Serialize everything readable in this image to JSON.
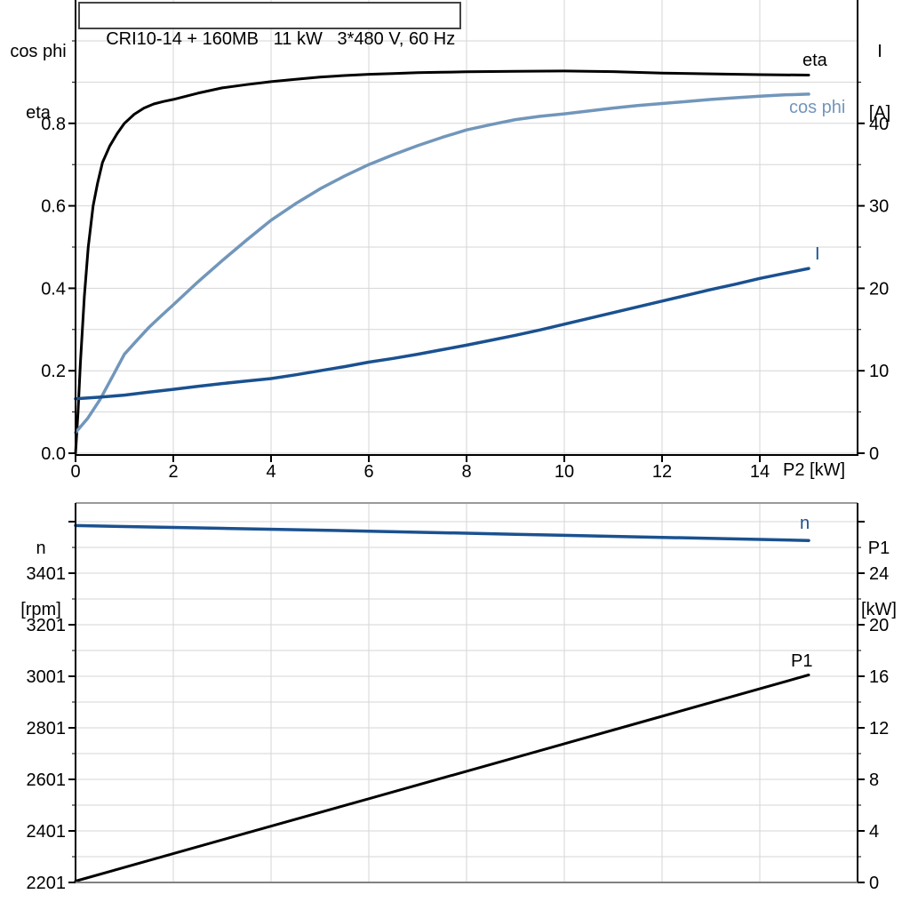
{
  "title": "CRI10-14 + 160MB   11 kW   3*480 V, 60 Hz",
  "colors": {
    "accent_dark_blue": "#1a5190",
    "accent_light_blue": "#7296bb",
    "curve_black": "#000000",
    "grid": "#d6d6d6",
    "axis": "#000000",
    "baseline_gray": "#808080",
    "panel_top_border": "#999999",
    "title_border": "#444444"
  },
  "chart_data": [
    {
      "type": "line",
      "panel": "motor-efficiency-current",
      "title": "CRI10-14 + 160MB   11 kW   3*480 V, 60 Hz",
      "grid": "on",
      "x_axis": {
        "label": "P2 [kW]",
        "min": 0,
        "max": 16,
        "major_ticks": [
          0,
          2,
          4,
          6,
          8,
          10,
          12,
          14
        ],
        "tick_labels": [
          "0",
          "2",
          "4",
          "6",
          "8",
          "10",
          "12",
          "14"
        ],
        "show_tick_labels": true
      },
      "y_left_axis": {
        "label_lines": [
          "cos phi",
          "eta"
        ],
        "min": 0.0,
        "max": 1.1,
        "major_ticks": [
          0.0,
          0.2,
          0.4,
          0.6,
          0.8
        ],
        "tick_labels": [
          "0.0",
          "0.2",
          "0.4",
          "0.6",
          "0.8"
        ],
        "unlabeled_major_ticks": [],
        "minor_ticks": [
          0.1,
          0.3,
          0.5,
          0.7,
          0.9,
          1.0
        ]
      },
      "y_right_axis": {
        "label_lines": [
          "I",
          "[A]"
        ],
        "min": 0,
        "max": 55,
        "major_ticks": [
          0,
          10,
          20,
          30,
          40
        ],
        "tick_labels": [
          "0",
          "10",
          "20",
          "30",
          "40"
        ],
        "unlabeled_major_ticks": [],
        "minor_ticks": [
          5,
          15,
          25,
          35,
          45
        ]
      },
      "series": [
        {
          "name": "eta",
          "axis": "left",
          "color": "#000000",
          "points": [
            [
              0,
              0
            ],
            [
              0.05,
              0.1
            ],
            [
              0.1,
              0.22
            ],
            [
              0.18,
              0.38
            ],
            [
              0.26,
              0.5
            ],
            [
              0.36,
              0.6
            ],
            [
              0.45,
              0.655
            ],
            [
              0.55,
              0.705
            ],
            [
              0.7,
              0.745
            ],
            [
              0.85,
              0.775
            ],
            [
              1,
              0.8
            ],
            [
              1.2,
              0.822
            ],
            [
              1.4,
              0.837
            ],
            [
              1.6,
              0.847
            ],
            [
              1.8,
              0.853
            ],
            [
              2,
              0.858
            ],
            [
              2.5,
              0.873
            ],
            [
              3,
              0.886
            ],
            [
              3.5,
              0.894
            ],
            [
              4,
              0.901
            ],
            [
              4.5,
              0.907
            ],
            [
              5,
              0.912
            ],
            [
              5.5,
              0.916
            ],
            [
              6,
              0.919
            ],
            [
              6.5,
              0.921
            ],
            [
              7,
              0.923
            ],
            [
              7.5,
              0.924
            ],
            [
              8,
              0.925
            ],
            [
              9,
              0.926
            ],
            [
              10,
              0.927
            ],
            [
              11,
              0.9255
            ],
            [
              12,
              0.922
            ],
            [
              13,
              0.92
            ],
            [
              14,
              0.918
            ],
            [
              15,
              0.917
            ]
          ]
        },
        {
          "name": "cos phi",
          "axis": "left",
          "color": "#7296bb",
          "points": [
            [
              0,
              0.05
            ],
            [
              0.25,
              0.085
            ],
            [
              0.5,
              0.13
            ],
            [
              0.75,
              0.185
            ],
            [
              1,
              0.24
            ],
            [
              1.25,
              0.273
            ],
            [
              1.5,
              0.305
            ],
            [
              1.75,
              0.333
            ],
            [
              2,
              0.36
            ],
            [
              2.5,
              0.415
            ],
            [
              3,
              0.467
            ],
            [
              3.5,
              0.517
            ],
            [
              4,
              0.565
            ],
            [
              4.5,
              0.605
            ],
            [
              5,
              0.641
            ],
            [
              5.5,
              0.672
            ],
            [
              6,
              0.7
            ],
            [
              6.5,
              0.724
            ],
            [
              7,
              0.746
            ],
            [
              7.5,
              0.766
            ],
            [
              8,
              0.784
            ],
            [
              8.5,
              0.797
            ],
            [
              9,
              0.809
            ],
            [
              9.5,
              0.817
            ],
            [
              10,
              0.823
            ],
            [
              10.5,
              0.83
            ],
            [
              11,
              0.837
            ],
            [
              11.5,
              0.843
            ],
            [
              12,
              0.848
            ],
            [
              12.5,
              0.853
            ],
            [
              13,
              0.858
            ],
            [
              13.5,
              0.862
            ],
            [
              14,
              0.866
            ],
            [
              14.5,
              0.869
            ],
            [
              15,
              0.871
            ]
          ]
        },
        {
          "name": "I",
          "axis": "right",
          "color": "#1a5190",
          "points": [
            [
              0,
              6.6
            ],
            [
              0.5,
              6.8
            ],
            [
              1,
              7.05
            ],
            [
              1.5,
              7.4
            ],
            [
              2,
              7.75
            ],
            [
              2.5,
              8.1
            ],
            [
              3,
              8.45
            ],
            [
              3.5,
              8.75
            ],
            [
              4,
              9.05
            ],
            [
              4.5,
              9.5
            ],
            [
              5,
              10
            ],
            [
              5.5,
              10.5
            ],
            [
              6,
              11.05
            ],
            [
              6.5,
              11.5
            ],
            [
              7,
              12
            ],
            [
              7.5,
              12.55
            ],
            [
              8,
              13.1
            ],
            [
              8.5,
              13.7
            ],
            [
              9,
              14.3
            ],
            [
              9.5,
              14.95
            ],
            [
              10,
              15.65
            ],
            [
              10.5,
              16.35
            ],
            [
              11,
              17.05
            ],
            [
              11.5,
              17.75
            ],
            [
              12,
              18.45
            ],
            [
              12.5,
              19.15
            ],
            [
              13,
              19.85
            ],
            [
              13.5,
              20.5
            ],
            [
              14,
              21.2
            ],
            [
              14.5,
              21.8
            ],
            [
              15,
              22.4
            ]
          ]
        }
      ]
    },
    {
      "type": "line",
      "panel": "speed-input-power",
      "grid": "on",
      "x_axis": {
        "label": "",
        "min": 0,
        "max": 16,
        "major_ticks": [
          2,
          4,
          6,
          8,
          10,
          12,
          14
        ],
        "tick_labels": [],
        "show_tick_labels": false
      },
      "y_left_axis": {
        "label_lines": [
          "n",
          "[rpm]"
        ],
        "min": 2201,
        "max": 3667,
        "major_ticks": [
          2201,
          2401,
          2601,
          2801,
          3001,
          3201,
          3401
        ],
        "tick_labels": [
          "2201",
          "2401",
          "2601",
          "2801",
          "3001",
          "3201",
          "3401"
        ],
        "unlabeled_major_ticks": [
          3601
        ],
        "minor_ticks": [
          2301,
          2501,
          2701,
          2901,
          3101,
          3301,
          3501
        ]
      },
      "y_right_axis": {
        "label_lines": [
          "P1",
          "[kW]"
        ],
        "min": 0,
        "max": 29.3,
        "major_ticks": [
          0,
          4,
          8,
          12,
          16,
          20,
          24
        ],
        "tick_labels": [
          "0",
          "4",
          "8",
          "12",
          "16",
          "20",
          "24"
        ],
        "unlabeled_major_ticks": [
          28
        ],
        "minor_ticks": [
          2,
          6,
          10,
          14,
          18,
          22,
          26
        ]
      },
      "series": [
        {
          "name": "n",
          "axis": "left",
          "color": "#1a5190",
          "points": [
            [
              0,
              3586
            ],
            [
              3,
              3575
            ],
            [
              6,
              3564
            ],
            [
              9,
              3552
            ],
            [
              12,
              3540
            ],
            [
              15,
              3528
            ]
          ]
        },
        {
          "name": "P1",
          "axis": "right",
          "color": "#000000",
          "points": [
            [
              0,
              0.1
            ],
            [
              3,
              3.3
            ],
            [
              6,
              6.5
            ],
            [
              9,
              9.7
            ],
            [
              12,
              12.9
            ],
            [
              15,
              16.1
            ]
          ]
        }
      ]
    }
  ]
}
